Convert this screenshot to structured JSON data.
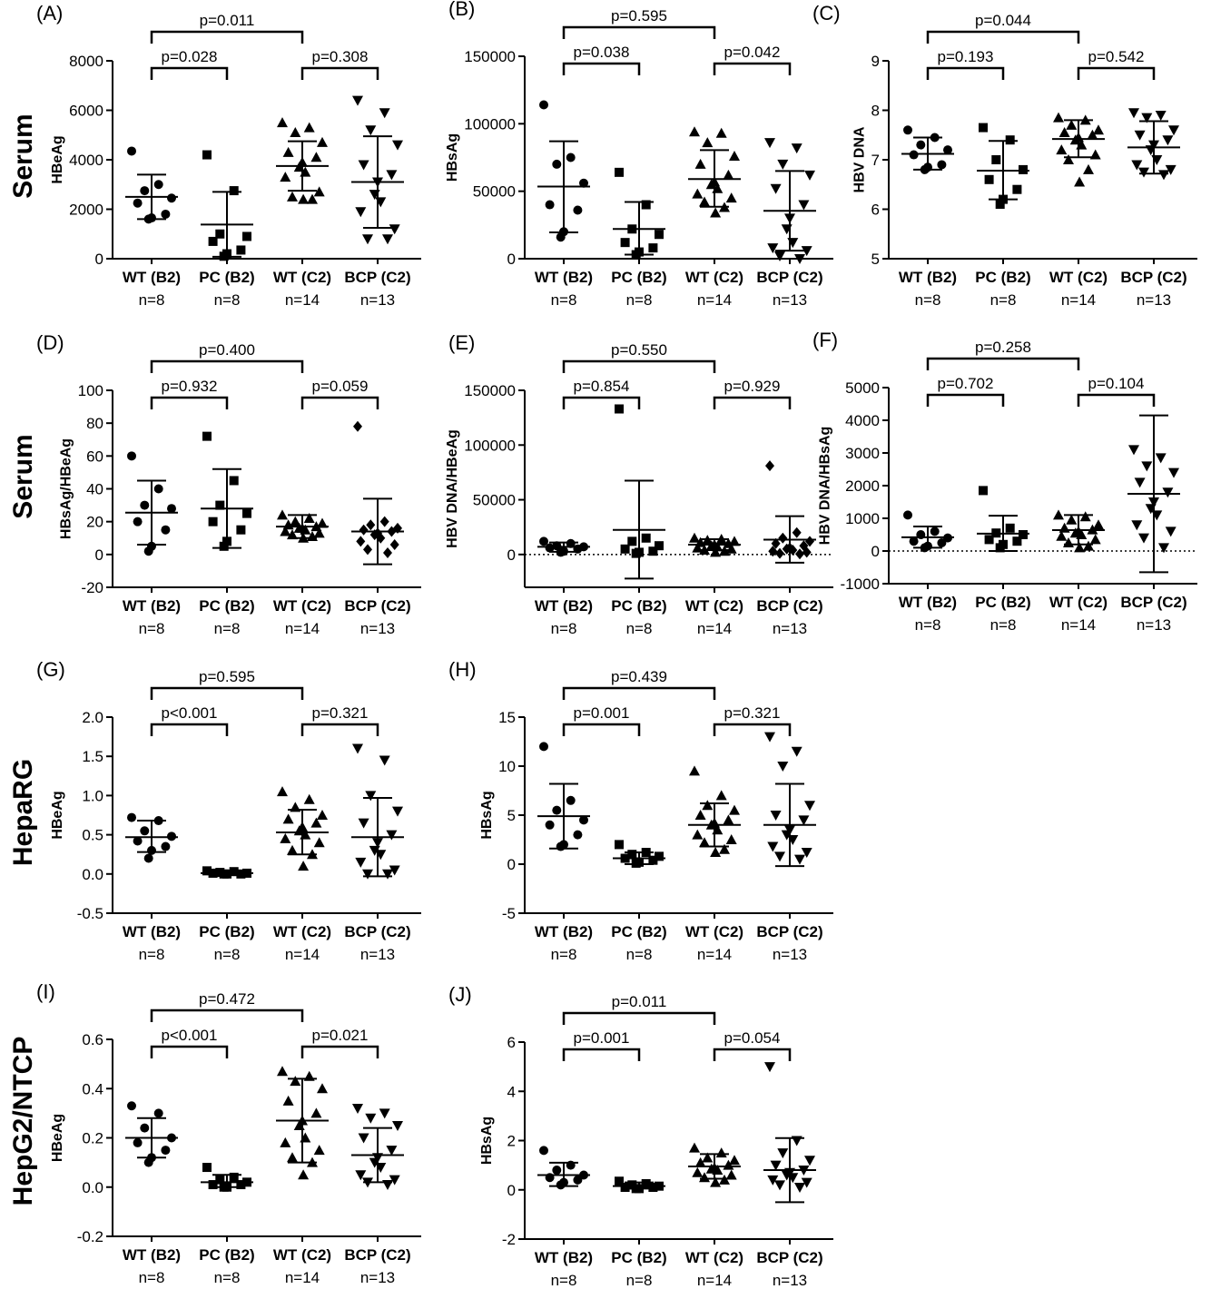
{
  "row_labels": [
    "Serum",
    "Serum",
    "HepaRG",
    "HepG2/NTCP"
  ],
  "categories": [
    "WT (B2)",
    "PC (B2)",
    "WT (C2)",
    "BCP (C2)"
  ],
  "group_counts": [
    "n=8",
    "n=8",
    "n=14",
    "n=13"
  ],
  "chart_data": [
    {
      "type": "scatter",
      "panel": "(A)",
      "title": "",
      "xlabel": "",
      "ylabel": "HBeAg",
      "ylim": [
        0,
        8000
      ],
      "yticks": [
        0,
        2000,
        4000,
        6000,
        8000
      ],
      "zero_line": false,
      "tick_labels": [
        "0",
        "2000",
        "4000",
        "6000",
        "8000"
      ],
      "markers": [
        "circle",
        "square",
        "triangle-up",
        "triangle-down"
      ],
      "comparisons": [
        "p=0.011",
        "p=0.028",
        "p=0.308"
      ],
      "series": [
        {
          "values": [
            4350,
            3000,
            2750,
            2450,
            2250,
            1800,
            1650,
            1600
          ],
          "mean": 2500,
          "sd_range": [
            1600,
            3400
          ]
        },
        {
          "values": [
            4200,
            2750,
            1000,
            900,
            700,
            350,
            200,
            100
          ],
          "mean": 1380,
          "sd_range": [
            80,
            2700
          ]
        },
        {
          "values": [
            5500,
            5300,
            5100,
            4700,
            4300,
            4100,
            3900,
            3700,
            3500,
            3300,
            2700,
            2500,
            2400,
            2400
          ],
          "mean": 3750,
          "sd_range": [
            2750,
            4750
          ]
        },
        {
          "values": [
            6400,
            5900,
            5200,
            4600,
            3800,
            3400,
            3100,
            2600,
            2300,
            1900,
            1200,
            800,
            800
          ],
          "mean": 3100,
          "sd_range": [
            1250,
            4950
          ]
        }
      ]
    },
    {
      "type": "scatter",
      "panel": "(B)",
      "title": "",
      "xlabel": "",
      "ylabel": "HBsAg",
      "ylim": [
        0,
        150000
      ],
      "yticks": [
        0,
        50000,
        100000,
        150000
      ],
      "zero_line": false,
      "tick_labels": [
        "0",
        "50000",
        "100000",
        "150000"
      ],
      "markers": [
        "circle",
        "square",
        "triangle-up",
        "triangle-down"
      ],
      "comparisons": [
        "p=0.595",
        "p=0.038",
        "p=0.042"
      ],
      "series": [
        {
          "values": [
            114000,
            75000,
            70000,
            56000,
            40000,
            36000,
            20000,
            16000
          ],
          "mean": 53500,
          "sd_range": [
            19500,
            87000
          ]
        },
        {
          "values": [
            64000,
            40000,
            22000,
            18000,
            12000,
            8000,
            5000,
            3000
          ],
          "mean": 22000,
          "sd_range": [
            3000,
            42000
          ]
        },
        {
          "values": [
            94000,
            93000,
            86000,
            76000,
            70000,
            62000,
            57000,
            55000,
            52000,
            48000,
            45000,
            42000,
            38000,
            34000
          ],
          "mean": 59000,
          "sd_range": [
            38500,
            80500
          ]
        },
        {
          "values": [
            86000,
            82000,
            70000,
            62000,
            52000,
            40000,
            30000,
            22000,
            12000,
            8000,
            6000,
            2000,
            0
          ],
          "mean": 35500,
          "sd_range": [
            6000,
            65000
          ]
        }
      ]
    },
    {
      "type": "scatter",
      "panel": "(C)",
      "title": "",
      "xlabel": "",
      "ylabel": "HBV DNA",
      "ylim": [
        5,
        9
      ],
      "yticks": [
        5,
        6,
        7,
        8,
        9
      ],
      "zero_line": false,
      "tick_labels": [
        "5",
        "6",
        "7",
        "8",
        "9"
      ],
      "markers": [
        "circle",
        "square",
        "triangle-up",
        "triangle-down"
      ],
      "comparisons": [
        "p=0.044",
        "p=0.193",
        "p=0.542"
      ],
      "series": [
        {
          "values": [
            7.6,
            7.45,
            7.3,
            7.2,
            7.1,
            6.9,
            6.85,
            6.8
          ],
          "mean": 7.12,
          "sd_range": [
            6.8,
            7.45
          ]
        },
        {
          "values": [
            7.65,
            7.4,
            7.0,
            6.8,
            6.6,
            6.4,
            6.2,
            6.1
          ],
          "mean": 6.78,
          "sd_range": [
            6.2,
            7.38
          ]
        },
        {
          "values": [
            7.85,
            7.8,
            7.7,
            7.6,
            7.55,
            7.5,
            7.45,
            7.4,
            7.3,
            7.2,
            7.1,
            7.0,
            6.8,
            6.55
          ],
          "mean": 7.42,
          "sd_range": [
            7.05,
            7.8
          ]
        },
        {
          "values": [
            7.95,
            7.9,
            7.85,
            7.6,
            7.5,
            7.4,
            7.3,
            7.2,
            7.0,
            6.9,
            6.8,
            6.75,
            6.7
          ],
          "mean": 7.25,
          "sd_range": [
            6.72,
            7.78
          ]
        }
      ]
    },
    {
      "type": "scatter",
      "panel": "(D)",
      "title": "",
      "xlabel": "",
      "ylabel": "HBsAg/HBeAg",
      "ylim": [
        -20,
        100
      ],
      "yticks": [
        -20,
        0,
        20,
        40,
        60,
        80,
        100
      ],
      "zero_line": false,
      "tick_labels": [
        "-20",
        "0",
        "20",
        "40",
        "60",
        "80",
        "100"
      ],
      "markers": [
        "circle",
        "square",
        "triangle-up",
        "diamond"
      ],
      "comparisons": [
        "p=0.400",
        "p=0.932",
        "p=0.059"
      ],
      "series": [
        {
          "values": [
            60,
            40,
            30,
            28,
            20,
            15,
            5,
            2
          ],
          "mean": 25.5,
          "sd_range": [
            6,
            45
          ]
        },
        {
          "values": [
            72,
            45,
            30,
            25,
            20,
            15,
            8,
            5
          ],
          "mean": 28,
          "sd_range": [
            4,
            52
          ]
        },
        {
          "values": [
            24,
            22,
            20,
            19,
            18,
            17,
            16,
            16,
            15,
            14,
            13,
            12,
            11,
            10
          ],
          "mean": 17,
          "sd_range": [
            10,
            24
          ]
        },
        {
          "values": [
            78,
            20,
            18,
            16,
            15,
            14,
            13,
            12,
            10,
            8,
            6,
            3,
            1
          ],
          "mean": 14,
          "sd_range": [
            -6,
            34
          ]
        }
      ]
    },
    {
      "type": "scatter",
      "panel": "(E)",
      "title": "",
      "xlabel": "",
      "ylabel": "HBV DNA/HBeAg",
      "ylim": [
        -30000,
        150000
      ],
      "yticks": [
        0,
        50000,
        100000,
        150000
      ],
      "zero_line": true,
      "tick_labels": [
        "0",
        "50000",
        "100000",
        "150000"
      ],
      "markers": [
        "circle",
        "square",
        "triangle-up",
        "diamond"
      ],
      "comparisons": [
        "p=0.550",
        "p=0.854",
        "p=0.929"
      ],
      "series": [
        {
          "values": [
            12000,
            10000,
            8000,
            7000,
            6000,
            5000,
            3000,
            2000
          ],
          "mean": 7000,
          "sd_range": [
            2500,
            11000
          ]
        },
        {
          "values": [
            133000,
            15000,
            12000,
            8000,
            5000,
            3000,
            2000,
            1000
          ],
          "mean": 22500,
          "sd_range": [
            -22000,
            67500
          ]
        },
        {
          "values": [
            15000,
            14000,
            13000,
            12000,
            11000,
            10000,
            9000,
            8000,
            7000,
            6000,
            5000,
            4000,
            3000,
            2000
          ],
          "mean": 9000,
          "sd_range": [
            4000,
            14000
          ]
        },
        {
          "values": [
            81000,
            20000,
            15000,
            12000,
            10000,
            8000,
            6000,
            5000,
            4000,
            3000,
            2000,
            1000,
            500
          ],
          "mean": 13500,
          "sd_range": [
            -7500,
            35000
          ]
        }
      ]
    },
    {
      "type": "scatter",
      "panel": "(F)",
      "title": "",
      "xlabel": "",
      "ylabel": "HBV DNA/HBsAg",
      "ylim": [
        -1000,
        5000
      ],
      "yticks": [
        -1000,
        0,
        1000,
        2000,
        3000,
        4000,
        5000
      ],
      "zero_line": true,
      "tick_labels": [
        "-1000",
        "0",
        "1000",
        "2000",
        "3000",
        "4000",
        "5000"
      ],
      "markers": [
        "circle",
        "square",
        "triangle-up",
        "triangle-down"
      ],
      "comparisons": [
        "p=0.258",
        "p=0.702",
        "p=0.104"
      ],
      "series": [
        {
          "values": [
            1100,
            600,
            500,
            400,
            300,
            250,
            150,
            100
          ],
          "mean": 420,
          "sd_range": [
            100,
            750
          ]
        },
        {
          "values": [
            1850,
            700,
            550,
            500,
            350,
            300,
            200,
            100
          ],
          "mean": 530,
          "sd_range": [
            0,
            1080
          ]
        },
        {
          "values": [
            1100,
            1050,
            950,
            800,
            700,
            650,
            600,
            550,
            500,
            450,
            350,
            250,
            150,
            100
          ],
          "mean": 640,
          "sd_range": [
            200,
            1100
          ]
        },
        {
          "values": [
            3100,
            2850,
            2600,
            2400,
            2100,
            1800,
            1500,
            1300,
            1100,
            800,
            600,
            400,
            100
          ],
          "mean": 1750,
          "sd_range": [
            -650,
            4150
          ]
        }
      ]
    },
    {
      "type": "scatter",
      "panel": "(G)",
      "title": "",
      "xlabel": "",
      "ylabel": "HBeAg",
      "ylim": [
        -0.5,
        2.0
      ],
      "yticks": [
        -0.5,
        0.0,
        0.5,
        1.0,
        1.5,
        2.0
      ],
      "zero_line": false,
      "tick_labels": [
        "-0.5",
        "0.0",
        "0.5",
        "1.0",
        "1.5",
        "2.0"
      ],
      "markers": [
        "circle",
        "square",
        "triangle-up",
        "triangle-down"
      ],
      "comparisons": [
        "p=0.595",
        "p<0.001",
        "p=0.321"
      ],
      "series": [
        {
          "values": [
            0.72,
            0.68,
            0.55,
            0.48,
            0.42,
            0.35,
            0.3,
            0.2
          ],
          "mean": 0.47,
          "sd_range": [
            0.28,
            0.68
          ]
        },
        {
          "values": [
            0.04,
            0.03,
            0.02,
            0.01,
            0.01,
            0.0,
            0.0,
            0.0
          ],
          "mean": 0.01,
          "sd_range": [
            -0.01,
            0.04
          ]
        },
        {
          "values": [
            1.05,
            0.95,
            0.85,
            0.75,
            0.7,
            0.65,
            0.6,
            0.55,
            0.5,
            0.45,
            0.4,
            0.3,
            0.25,
            0.1
          ],
          "mean": 0.53,
          "sd_range": [
            0.25,
            0.82
          ]
        },
        {
          "values": [
            1.6,
            1.45,
            1.0,
            0.8,
            0.65,
            0.5,
            0.4,
            0.3,
            0.25,
            0.15,
            0.05,
            0.0,
            0.0
          ],
          "mean": 0.47,
          "sd_range": [
            -0.03,
            0.97
          ]
        }
      ]
    },
    {
      "type": "scatter",
      "panel": "(H)",
      "title": "",
      "xlabel": "",
      "ylabel": "HBsAg",
      "ylim": [
        -5,
        15
      ],
      "yticks": [
        -5,
        0,
        5,
        10,
        15
      ],
      "zero_line": false,
      "tick_labels": [
        "-5",
        "0",
        "5",
        "10",
        "15"
      ],
      "markers": [
        "circle",
        "square",
        "triangle-up",
        "triangle-down"
      ],
      "comparisons": [
        "p=0.439",
        "p=0.001",
        "p=0.321"
      ],
      "series": [
        {
          "values": [
            12,
            6.5,
            5.5,
            4.5,
            4,
            3,
            2,
            1.8
          ],
          "mean": 4.9,
          "sd_range": [
            1.6,
            8.2
          ]
        },
        {
          "values": [
            2,
            1.2,
            1,
            0.8,
            0.6,
            0.4,
            0.2,
            0.1
          ],
          "mean": 0.6,
          "sd_range": [
            0,
            1.2
          ]
        },
        {
          "values": [
            9.5,
            7,
            6,
            5.5,
            5,
            4.5,
            4.2,
            4,
            3.5,
            3,
            2.5,
            2.2,
            1.5,
            1.2
          ],
          "mean": 4.0,
          "sd_range": [
            1.8,
            6.2
          ]
        },
        {
          "values": [
            13,
            11.5,
            10,
            6,
            5,
            4.5,
            3.5,
            3,
            2.5,
            1.8,
            1.2,
            0.8,
            0.5
          ],
          "mean": 4.0,
          "sd_range": [
            -0.2,
            8.2
          ]
        }
      ]
    },
    {
      "type": "scatter",
      "panel": "(I)",
      "title": "",
      "xlabel": "",
      "ylabel": "HBeAg",
      "ylim": [
        -0.2,
        0.6
      ],
      "yticks": [
        -0.2,
        0.0,
        0.2,
        0.4,
        0.6
      ],
      "zero_line": false,
      "tick_labels": [
        "-0.2",
        "0.0",
        "0.2",
        "0.4",
        "0.6"
      ],
      "markers": [
        "circle",
        "square",
        "triangle-up",
        "triangle-down"
      ],
      "comparisons": [
        "p=0.472",
        "p<0.001",
        "p=0.021"
      ],
      "series": [
        {
          "values": [
            0.33,
            0.3,
            0.24,
            0.2,
            0.18,
            0.15,
            0.12,
            0.1
          ],
          "mean": 0.2,
          "sd_range": [
            0.12,
            0.28
          ]
        },
        {
          "values": [
            0.08,
            0.04,
            0.03,
            0.02,
            0.01,
            0.01,
            0.0,
            0.0
          ],
          "mean": 0.02,
          "sd_range": [
            0.0,
            0.05
          ]
        },
        {
          "values": [
            0.47,
            0.45,
            0.43,
            0.4,
            0.35,
            0.3,
            0.27,
            0.25,
            0.2,
            0.18,
            0.15,
            0.12,
            0.1,
            0.05
          ],
          "mean": 0.27,
          "sd_range": [
            0.1,
            0.44
          ]
        },
        {
          "values": [
            0.32,
            0.3,
            0.28,
            0.25,
            0.2,
            0.15,
            0.12,
            0.1,
            0.08,
            0.05,
            0.03,
            0.02,
            0.01
          ],
          "mean": 0.13,
          "sd_range": [
            0.02,
            0.24
          ]
        }
      ]
    },
    {
      "type": "scatter",
      "panel": "(J)",
      "title": "",
      "xlabel": "",
      "ylabel": "HBsAg",
      "ylim": [
        -2,
        6
      ],
      "yticks": [
        -2,
        0,
        2,
        4,
        6
      ],
      "zero_line": false,
      "tick_labels": [
        "-2",
        "0",
        "2",
        "4",
        "6"
      ],
      "markers": [
        "circle",
        "square",
        "triangle-up",
        "triangle-down"
      ],
      "comparisons": [
        "p=0.011",
        "p=0.001",
        "p=0.054"
      ],
      "series": [
        {
          "values": [
            1.6,
            1.0,
            0.8,
            0.6,
            0.5,
            0.4,
            0.3,
            0.2
          ],
          "mean": 0.6,
          "sd_range": [
            0.15,
            1.1
          ]
        },
        {
          "values": [
            0.35,
            0.25,
            0.2,
            0.15,
            0.1,
            0.1,
            0.05,
            0.05
          ],
          "mean": 0.15,
          "sd_range": [
            0.05,
            0.3
          ]
        },
        {
          "values": [
            1.7,
            1.5,
            1.3,
            1.2,
            1.1,
            1.0,
            0.9,
            0.85,
            0.8,
            0.7,
            0.6,
            0.5,
            0.4,
            0.3
          ],
          "mean": 0.95,
          "sd_range": [
            0.45,
            1.45
          ]
        },
        {
          "values": [
            5.0,
            2.0,
            1.5,
            1.2,
            1.0,
            0.8,
            0.7,
            0.6,
            0.5,
            0.4,
            0.3,
            0.2,
            0.1
          ],
          "mean": 0.8,
          "sd_range": [
            -0.5,
            2.1
          ]
        }
      ]
    }
  ]
}
